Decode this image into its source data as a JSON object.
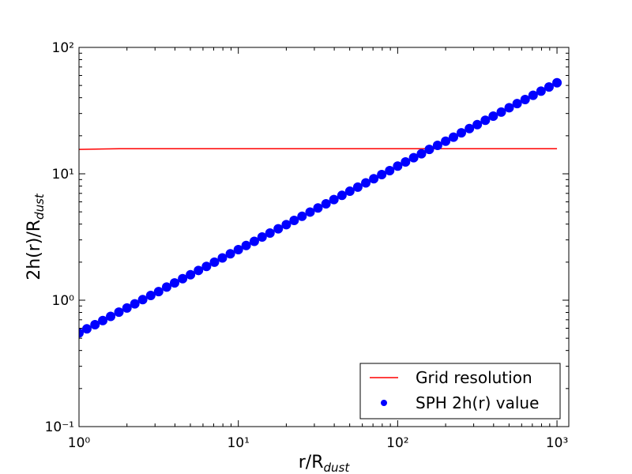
{
  "chart_data": {
    "type": "scatter",
    "xlabel": {
      "text": "r/R",
      "subscript": "dust"
    },
    "ylabel": {
      "text": "2h(r)/R",
      "subscript": "dust"
    },
    "xscale": "log",
    "yscale": "log",
    "xlim": [
      1,
      1186
    ],
    "ylim": [
      0.1,
      100
    ],
    "xticks": [
      {
        "value": 1,
        "label": "10⁰"
      },
      {
        "value": 10,
        "label": "10¹"
      },
      {
        "value": 100,
        "label": "10²"
      },
      {
        "value": 1000,
        "label": "10³"
      }
    ],
    "yticks": [
      {
        "value": 0.1,
        "label": "10⁻¹"
      },
      {
        "value": 1,
        "label": "10⁰"
      },
      {
        "value": 10,
        "label": "10¹"
      },
      {
        "value": 100,
        "label": "10²"
      }
    ],
    "legend": "lower right",
    "series": [
      {
        "name": "Grid resolution",
        "type": "line",
        "color": "#ff0000",
        "x": [
          1,
          1.8,
          10,
          100,
          1000
        ],
        "values": [
          15.6,
          15.8,
          15.8,
          15.8,
          15.8
        ]
      },
      {
        "name": "SPH 2h(r) value",
        "type": "scatter",
        "color": "#0000ff",
        "x": [
          1,
          1.12,
          1.26,
          1.41,
          1.58,
          1.78,
          2,
          2.24,
          2.51,
          2.82,
          3.16,
          3.55,
          3.98,
          4.47,
          5.01,
          5.62,
          6.31,
          7.08,
          7.94,
          8.91,
          10,
          11.2,
          12.6,
          14.1,
          15.8,
          17.8,
          20,
          22.4,
          25.1,
          28.2,
          31.6,
          35.5,
          39.8,
          44.7,
          50.1,
          56.2,
          63.1,
          70.8,
          79.4,
          89.1,
          100,
          112,
          126,
          141,
          158,
          178,
          200,
          224,
          251,
          282,
          316,
          355,
          398,
          447,
          501,
          562,
          631,
          708,
          794,
          891,
          1000
        ],
        "values": [
          0.55,
          0.593,
          0.64,
          0.69,
          0.745,
          0.804,
          0.867,
          0.935,
          1.01,
          1.09,
          1.17,
          1.27,
          1.37,
          1.48,
          1.59,
          1.72,
          1.85,
          2.0,
          2.16,
          2.33,
          2.51,
          2.71,
          2.92,
          3.16,
          3.4,
          3.67,
          3.96,
          4.28,
          4.61,
          4.98,
          5.37,
          5.79,
          6.25,
          6.75,
          7.28,
          7.85,
          8.47,
          9.14,
          9.86,
          10.6,
          11.5,
          12.4,
          13.4,
          14.4,
          15.6,
          16.8,
          18.1,
          19.5,
          21.1,
          22.8,
          24.5,
          26.5,
          28.6,
          30.8,
          33.3,
          35.9,
          38.7,
          41.8,
          45.1,
          48.6,
          52.5
        ]
      }
    ]
  }
}
